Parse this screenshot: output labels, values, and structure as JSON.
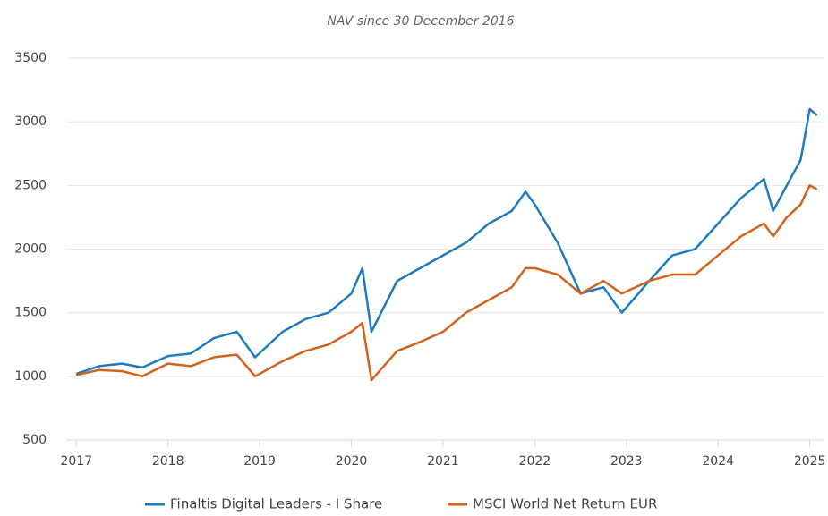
{
  "chart_data": {
    "type": "line",
    "title": "NAV since 30 December 2016",
    "x": [
      2017.0,
      2017.25,
      2017.5,
      2017.72,
      2018.0,
      2018.25,
      2018.5,
      2018.75,
      2018.95,
      2019.25,
      2019.5,
      2019.75,
      2020.0,
      2020.12,
      2020.22,
      2020.5,
      2020.75,
      2021.0,
      2021.25,
      2021.5,
      2021.75,
      2021.9,
      2022.0,
      2022.25,
      2022.5,
      2022.75,
      2022.95,
      2023.25,
      2023.5,
      2023.75,
      2024.0,
      2024.25,
      2024.5,
      2024.6,
      2024.75,
      2024.9,
      2025.0,
      2025.08
    ],
    "series": [
      {
        "name": "Finaltis Digital Leaders - I Share",
        "color": "#1f7bc1",
        "values": [
          1020,
          1080,
          1100,
          1070,
          1160,
          1180,
          1300,
          1350,
          1150,
          1350,
          1450,
          1500,
          1650,
          1850,
          1350,
          1750,
          1850,
          1950,
          2050,
          2200,
          2300,
          2450,
          2350,
          2050,
          1650,
          1700,
          1500,
          1750,
          1950,
          2000,
          2200,
          2400,
          2550,
          2300,
          2500,
          2700,
          3100,
          3050
        ]
      },
      {
        "name": "MSCI World Net Return EUR",
        "color": "#d2621c",
        "values": [
          1010,
          1050,
          1040,
          1000,
          1100,
          1080,
          1150,
          1170,
          1000,
          1120,
          1200,
          1250,
          1350,
          1420,
          970,
          1200,
          1270,
          1350,
          1500,
          1600,
          1700,
          1850,
          1850,
          1800,
          1650,
          1750,
          1650,
          1750,
          1800,
          1800,
          1950,
          2100,
          2200,
          2100,
          2250,
          2350,
          2500,
          2470
        ]
      }
    ],
    "xlim": [
      2016.9,
      2025.15
    ],
    "xticks": [
      2017,
      2018,
      2019,
      2020,
      2021,
      2022,
      2023,
      2024,
      2025
    ],
    "ylim": [
      500,
      3500
    ],
    "yticks": [
      500,
      1000,
      1500,
      2000,
      2500,
      3000,
      3500
    ],
    "grid": true,
    "legend": "bottom"
  }
}
